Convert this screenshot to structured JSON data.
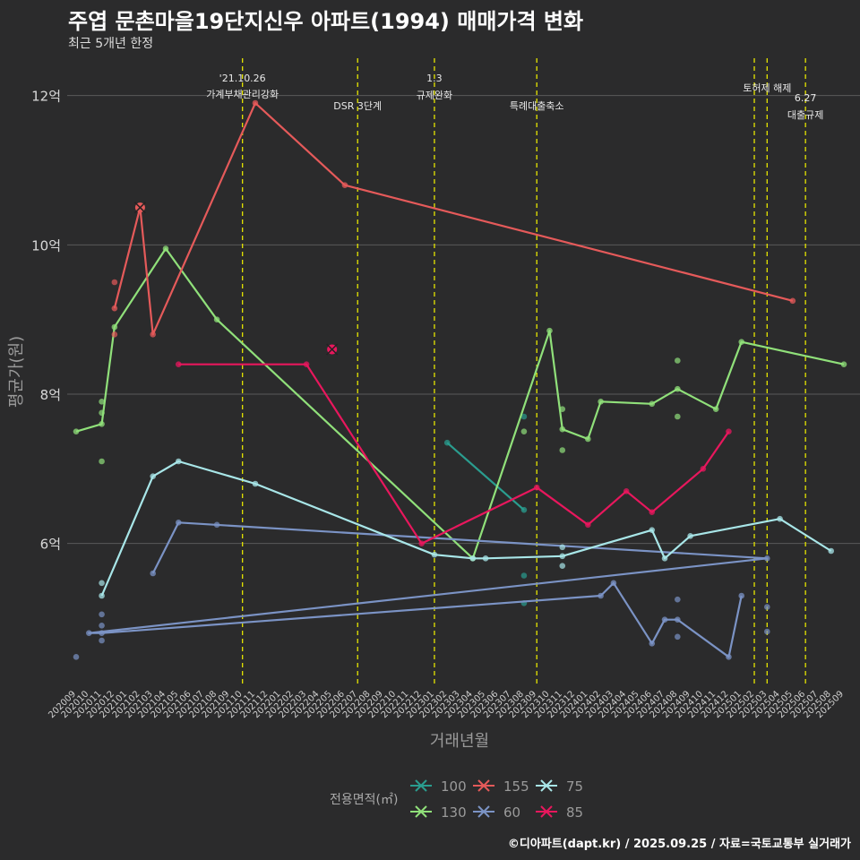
{
  "header": {
    "title": "주엽 문촌마을19단지신우 아파트(1994) 매매가격 변화",
    "subtitle": "최근 5개년 한정"
  },
  "caption": "©디아파트(dapt.kr) / 2025.09.25 / 자료=국토교통부 실거래가",
  "colors": {
    "background": "#2b2b2c",
    "grid": "#5a5a5a",
    "vline": "#e6e600",
    "100": "#2a9d8f",
    "130": "#90e07a",
    "155": "#e55a5a",
    "60": "#7b93c5",
    "75": "#a8e6e8",
    "85": "#e8175d"
  },
  "chart_data": {
    "type": "line",
    "xlabel": "거래년월",
    "ylabel": "평균가(원)",
    "x_categories": [
      "202009",
      "202010",
      "202011",
      "202012",
      "202101",
      "202102",
      "202103",
      "202104",
      "202105",
      "202106",
      "202107",
      "202108",
      "202109",
      "202110",
      "202111",
      "202112",
      "202201",
      "202202",
      "202203",
      "202204",
      "202205",
      "202206",
      "202207",
      "202208",
      "202209",
      "202210",
      "202211",
      "202212",
      "202301",
      "202302",
      "202303",
      "202304",
      "202305",
      "202306",
      "202307",
      "202308",
      "202309",
      "202310",
      "202311",
      "202312",
      "202401",
      "202402",
      "202403",
      "202404",
      "202405",
      "202406",
      "202407",
      "202408",
      "202409",
      "202410",
      "202411",
      "202412",
      "202501",
      "202502",
      "202503",
      "202504",
      "202505",
      "202506",
      "202507",
      "202508",
      "202509"
    ],
    "y_ticks": [
      6,
      8,
      10,
      12
    ],
    "y_tick_labels": [
      "6억",
      "8억",
      "10억",
      "12억"
    ],
    "ylim": [
      4.1,
      12.5
    ],
    "y_unit": "억",
    "legend": {
      "title": "전용면적(㎡)",
      "position": "bottom"
    },
    "events": [
      {
        "x": "202110",
        "label": "'21.10.26\n가계부채관리강화"
      },
      {
        "x": "202207",
        "label": "DSR 3단계"
      },
      {
        "x": "202301",
        "label": "1.3\n규제완화"
      },
      {
        "x": "202309",
        "label": "특례대출축소"
      },
      {
        "x": "202502",
        "label": ""
      },
      {
        "x": "202503",
        "label": "토허제 해제"
      },
      {
        "x": "202506",
        "label": "6.27\n대출규제"
      }
    ],
    "series": [
      {
        "name": "100",
        "line": [
          [
            "202302",
            7.35
          ],
          [
            "202308",
            6.45
          ]
        ],
        "points": [
          [
            "202308",
            7.7
          ],
          [
            "202308",
            5.57
          ],
          [
            "202308",
            5.2
          ]
        ]
      },
      {
        "name": "130",
        "line": [
          [
            "202009",
            7.5
          ],
          [
            "202011",
            7.6
          ],
          [
            "202012",
            8.9
          ],
          [
            "202104",
            9.95
          ],
          [
            "202108",
            9.0
          ],
          [
            "202304",
            5.8
          ],
          [
            "202310",
            8.85
          ],
          [
            "202311",
            7.53
          ],
          [
            "202401",
            7.4
          ],
          [
            "202402",
            7.9
          ],
          [
            "202406",
            7.87
          ],
          [
            "202408",
            8.07
          ],
          [
            "202411",
            7.8
          ],
          [
            "202501",
            8.7
          ],
          [
            "202509",
            8.4
          ]
        ],
        "points": [
          [
            "202011",
            7.9
          ],
          [
            "202011",
            7.75
          ],
          [
            "202011",
            7.1
          ],
          [
            "202308",
            7.5
          ],
          [
            "202311",
            7.8
          ],
          [
            "202311",
            7.25
          ],
          [
            "202408",
            8.45
          ],
          [
            "202408",
            7.7
          ]
        ]
      },
      {
        "name": "155",
        "line": [
          [
            "202012",
            9.15
          ],
          [
            "202102",
            10.5
          ],
          [
            "202103",
            8.8
          ],
          [
            "202111",
            11.9
          ],
          [
            "202206",
            10.8
          ],
          [
            "202505",
            9.25
          ]
        ],
        "points": [
          [
            "202012",
            9.5
          ],
          [
            "202012",
            8.8
          ]
        ],
        "cancelled": [
          [
            "202102",
            10.5
          ]
        ]
      },
      {
        "name": "60",
        "line": [
          [
            "202103",
            5.6
          ],
          [
            "202105",
            6.28
          ],
          [
            "202503",
            5.8
          ],
          [
            "202010",
            4.8
          ],
          [
            "202011",
            4.8
          ],
          [
            "202402",
            5.3
          ],
          [
            "202403",
            5.47
          ],
          [
            "202406",
            4.66
          ],
          [
            "202407",
            4.98
          ],
          [
            "202408",
            4.98
          ],
          [
            "202412",
            4.48
          ],
          [
            "202501",
            5.3
          ]
        ],
        "points": [
          [
            "202009",
            4.48
          ],
          [
            "202011",
            4.9
          ],
          [
            "202011",
            4.7
          ],
          [
            "202011",
            5.05
          ],
          [
            "202108",
            6.25
          ],
          [
            "202408",
            5.25
          ],
          [
            "202408",
            4.75
          ],
          [
            "202503",
            5.15
          ],
          [
            "202503",
            4.82
          ]
        ]
      },
      {
        "name": "75",
        "line": [
          [
            "202011",
            5.3
          ],
          [
            "202103",
            6.9
          ],
          [
            "202105",
            7.1
          ],
          [
            "202111",
            6.8
          ],
          [
            "202301",
            5.85
          ],
          [
            "202304",
            5.8
          ],
          [
            "202305",
            5.8
          ],
          [
            "202311",
            5.83
          ],
          [
            "202406",
            6.18
          ],
          [
            "202407",
            5.8
          ],
          [
            "202409",
            6.1
          ],
          [
            "202504",
            6.33
          ],
          [
            "202508",
            5.9
          ]
        ],
        "points": [
          [
            "202011",
            5.47
          ],
          [
            "202311",
            5.95
          ],
          [
            "202311",
            5.7
          ]
        ]
      },
      {
        "name": "85",
        "line": [
          [
            "202105",
            8.4
          ],
          [
            "202203",
            8.4
          ],
          [
            "202212",
            6.0
          ],
          [
            "202309",
            6.75
          ],
          [
            "202401",
            6.25
          ],
          [
            "202404",
            6.7
          ],
          [
            "202406",
            6.42
          ],
          [
            "202410",
            7.0
          ],
          [
            "202412",
            7.5
          ]
        ],
        "points": [],
        "cancelled": [
          [
            "202205",
            8.6
          ]
        ]
      }
    ]
  }
}
